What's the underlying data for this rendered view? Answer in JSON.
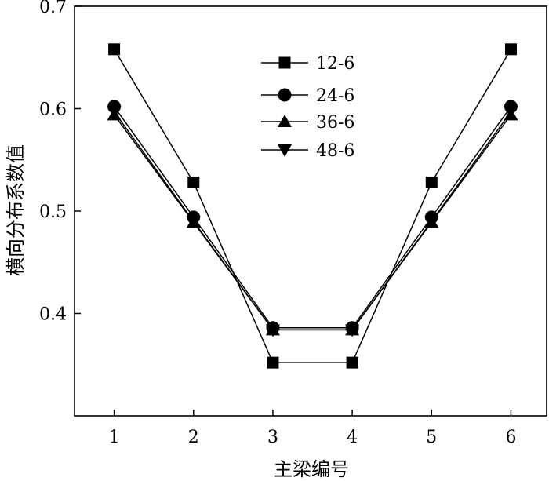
{
  "chart_data": {
    "type": "line",
    "title": "",
    "xlabel": "主梁编号",
    "ylabel": "横向分布系数值",
    "x": [
      1,
      2,
      3,
      4,
      5,
      6
    ],
    "xlim": [
      0.5,
      6.45
    ],
    "ylim": [
      0.3,
      0.7
    ],
    "xticks": [
      "1",
      "2",
      "3",
      "4",
      "5",
      "6"
    ],
    "yticks": [
      "0.4",
      "0.5",
      "0.6",
      "0.7"
    ],
    "ytick_values": [
      0.4,
      0.5,
      0.6,
      0.7
    ],
    "grid": false,
    "legend_position": "top-center",
    "series": [
      {
        "name": "12-6",
        "marker": "square",
        "values": [
          0.658,
          0.528,
          0.352,
          0.352,
          0.528,
          0.658
        ]
      },
      {
        "name": "24-6",
        "marker": "circle",
        "values": [
          0.602,
          0.494,
          0.386,
          0.386,
          0.494,
          0.602
        ]
      },
      {
        "name": "36-6",
        "marker": "triangle-up",
        "values": [
          0.594,
          0.489,
          0.384,
          0.384,
          0.489,
          0.594
        ]
      },
      {
        "name": "48-6",
        "marker": "triangle-down",
        "values": [
          0.597,
          0.49,
          0.384,
          0.384,
          0.49,
          0.597
        ]
      }
    ],
    "color": "#000000"
  }
}
